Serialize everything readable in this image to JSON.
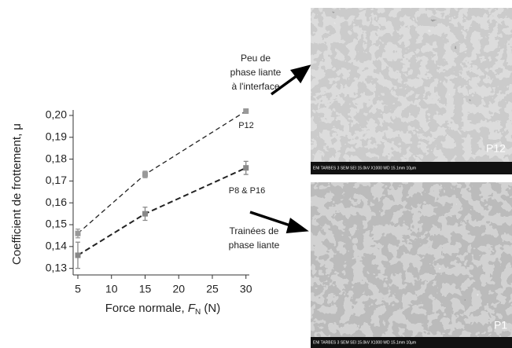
{
  "chart_data": {
    "type": "line",
    "y_label": "Coefficient de frottement, μ",
    "x_label": {
      "text": "Force normale, ",
      "symbol": "F",
      "subscript": "N",
      "unit": " (N)"
    },
    "x": [
      5,
      15,
      30
    ],
    "series": [
      {
        "name": "P12",
        "color": "#999999",
        "values": [
          0.146,
          0.173,
          0.202
        ],
        "errors": [
          0.002,
          0.0015,
          0.001
        ]
      },
      {
        "name": "P8 & P16",
        "color": "#888888",
        "values": [
          0.136,
          0.155,
          0.176
        ],
        "errors": [
          0.006,
          0.003,
          0.003
        ]
      }
    ],
    "xlim": [
      4.3,
      30.5
    ],
    "xticks": [
      5,
      10,
      15,
      20,
      25,
      30
    ],
    "ylim": [
      0.127,
      0.2025
    ],
    "yticks": [
      {
        "value": 0.13,
        "label": "0,13"
      },
      {
        "value": 0.14,
        "label": "0,14"
      },
      {
        "value": 0.15,
        "label": "0,15"
      },
      {
        "value": 0.16,
        "label": "0,16"
      },
      {
        "value": 0.17,
        "label": "0,17"
      },
      {
        "value": 0.18,
        "label": "0,18"
      },
      {
        "value": 0.19,
        "label": "0,19"
      },
      {
        "value": 0.2,
        "label": "0,20"
      }
    ],
    "annotations": [
      {
        "lines": [
          "Peu de",
          "phase liante",
          "à l'interface"
        ]
      },
      {
        "lines": [
          "Trainées de",
          "phase liante"
        ]
      }
    ],
    "images": [
      {
        "caption": "ENI TARBES   3   SEM   SEI   15.0kV   X1000   WD 15.1mm   10µm",
        "label": "P12"
      },
      {
        "caption": "ENI TARBES   3   SEM   SEI   15.0kV   X1000   WD 15.1mm   10µm",
        "label": "P1"
      }
    ]
  }
}
